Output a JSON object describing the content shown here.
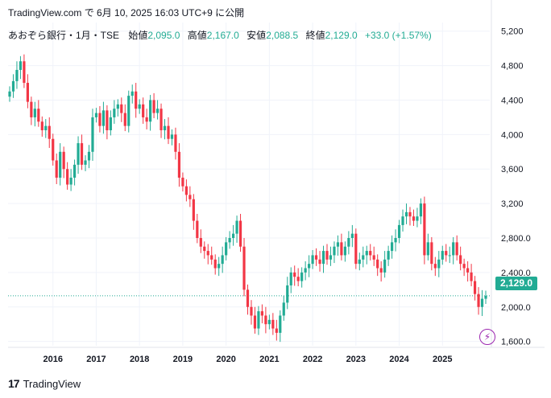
{
  "header": {
    "text": "TradingView.com で 6月 10, 2025 16:03 UTC+9 に公開"
  },
  "infobar": {
    "symbol": "あおぞら銀行・1月・TSE",
    "open_label": "始値",
    "open_value": "2,095.0",
    "high_label": "高値",
    "high_value": "2,167.0",
    "low_label": "安値",
    "low_value": "2,088.5",
    "close_label": "終値",
    "close_value": "2,129.0",
    "change": "+33.0 (+1.57%)"
  },
  "price_label": "2,129.0",
  "footer": {
    "brand": "TradingView",
    "logo": "17"
  },
  "colors": {
    "up": "#22ab94",
    "down": "#f23645",
    "grid": "#f0f3fa",
    "accent": "#9c27b0"
  },
  "icons": {
    "lightning": "lightning-icon"
  },
  "chart_data": {
    "type": "candlestick",
    "y_ticks": [
      "5,200",
      "4,800",
      "4,400",
      "4,000",
      "3,600",
      "3,200",
      "2,800.0",
      "2,400.0",
      "2,000.0",
      "1,600.0"
    ],
    "x_ticks": [
      "2016",
      "2017",
      "2018",
      "2019",
      "2020",
      "2021",
      "2022",
      "2023",
      "2024",
      "2025"
    ],
    "ylim": [
      1550,
      5300
    ],
    "last_price": 2129,
    "monthly_close": [
      4500,
      4620,
      4750,
      4850,
      4600,
      4380,
      4200,
      4300,
      4150,
      4050,
      4100,
      3950,
      3700,
      3500,
      3800,
      3600,
      3420,
      3500,
      3650,
      3900,
      3650,
      3700,
      3800,
      4200,
      4250,
      4100,
      4280,
      4050,
      4200,
      4300,
      4350,
      4250,
      4100,
      4450,
      4500,
      4300,
      4350,
      4200,
      4150,
      4400,
      4250,
      4300,
      4050,
      4100,
      3950,
      4000,
      3800,
      3500,
      3400,
      3300,
      3250,
      3000,
      2800,
      2700,
      2650,
      2600,
      2550,
      2450,
      2500,
      2600,
      2750,
      2800,
      2850,
      3000,
      2700,
      2200,
      2000,
      1900,
      1750,
      1950,
      1900,
      1800,
      1850,
      1750,
      1700,
      1900,
      2050,
      2250,
      2400,
      2350,
      2300,
      2400,
      2450,
      2500,
      2600,
      2550,
      2500,
      2650,
      2550,
      2600,
      2700,
      2750,
      2600,
      2700,
      2800,
      2850,
      2500,
      2550,
      2600,
      2650,
      2600,
      2550,
      2450,
      2400,
      2550,
      2650,
      2750,
      2800,
      2950,
      3050,
      3100,
      3050,
      3000,
      3050,
      3200,
      2600,
      2750,
      2500,
      2450,
      2550,
      2650,
      2600,
      2600,
      2750,
      2600,
      2500,
      2450,
      2400,
      2300,
      2150,
      2000,
      2095,
      2129
    ]
  }
}
